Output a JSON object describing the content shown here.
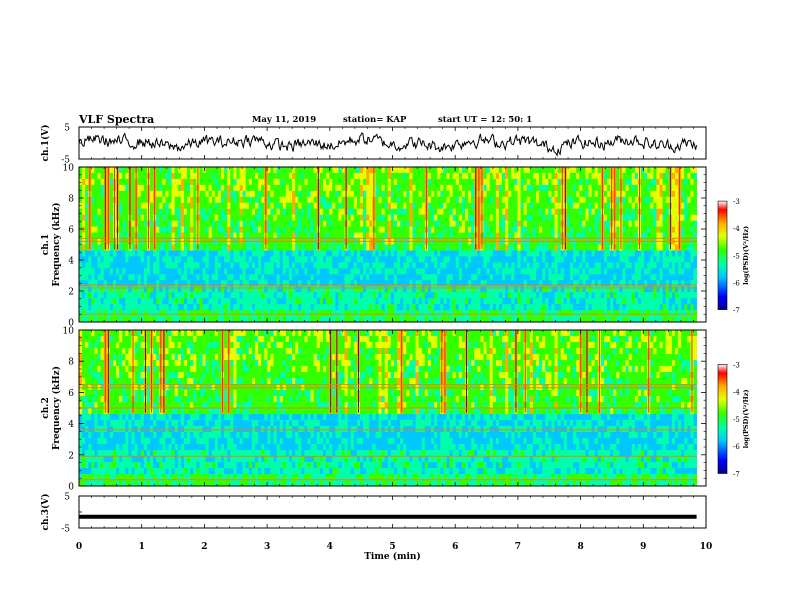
{
  "header": {
    "title": "VLF Spectra",
    "date": "May 11, 2019",
    "station": "station= KAP",
    "start": "start  UT =   12: 50: 1"
  },
  "chart_data": [
    {
      "type": "line",
      "panel": "ch1-waveform",
      "ylabel": "ch.1(V)",
      "ylim": [
        -5,
        5
      ],
      "yticks": [
        "5",
        "-5"
      ],
      "xlim": [
        0,
        10
      ],
      "series": [
        {
          "values_summary": "noisy waveform fluctuating roughly between -3 and 3 V across 0–9.8 min",
          "color": "#000000"
        }
      ]
    },
    {
      "type": "heatmap",
      "panel": "ch1-spectrogram",
      "ylabel": "ch.1\nFrequency (kHz)",
      "ylabel_lines": [
        "ch.1",
        "Frequency (kHz)"
      ],
      "ylim": [
        0,
        10
      ],
      "yticks": [
        "0",
        "2",
        "4",
        "6",
        "8",
        "10"
      ],
      "xlim": [
        0,
        9.85
      ],
      "colorbar": {
        "label": "log(PSD)(V²/Hz)",
        "range": [
          -7,
          -3
        ],
        "ticks": [
          "-3",
          "-4",
          "-5",
          "-6",
          "-7"
        ]
      },
      "horizontal_lines_khz": [
        0.5,
        2.2,
        2.4,
        5.2,
        5.4
      ],
      "description_bands": "low-frequency blue/cyan band 2.5–4.5 kHz, green/yellow elsewhere, red vertical sferics throughout"
    },
    {
      "type": "heatmap",
      "panel": "ch2-spectrogram",
      "ylabel": "ch.2\nFrequency (kHz)",
      "ylabel_lines": [
        "ch.2",
        "Frequency (kHz)"
      ],
      "ylim": [
        0,
        10
      ],
      "yticks": [
        "0",
        "2",
        "4",
        "6",
        "8",
        "10"
      ],
      "xlim": [
        0,
        9.85
      ],
      "colorbar": {
        "label": "log(PSD)(V²/Hz)",
        "range": [
          -7,
          -3
        ],
        "ticks": [
          "-3",
          "-4",
          "-5",
          "-6",
          "-7"
        ]
      },
      "horizontal_lines_khz": [
        0.4,
        1.9,
        3.6,
        5.0,
        6.3,
        6.5
      ]
    },
    {
      "type": "line",
      "panel": "ch3-waveform",
      "ylabel": "ch.3(V)",
      "ylim": [
        -5,
        5
      ],
      "yticks": [
        "5",
        "-5"
      ],
      "xlim": [
        0,
        10
      ],
      "series": [
        {
          "values_summary": "constant at about -1.5 V",
          "constant": -1.5,
          "color": "#000000"
        }
      ]
    }
  ],
  "xaxis": {
    "label": "Time (min)",
    "ticks": [
      "0",
      "1",
      "2",
      "3",
      "4",
      "5",
      "6",
      "7",
      "8",
      "9",
      "10"
    ],
    "range": [
      0,
      10
    ]
  },
  "colorbar_label": "log(PSD)(V²/Hz)",
  "colors": {
    "background": "#ffffff",
    "axes": "#000000",
    "cmap": [
      "#00008c",
      "#0000ff",
      "#00c8ff",
      "#00ffaa",
      "#32ff00",
      "#e6ff00",
      "#ffaa00",
      "#ff0000",
      "#ffffff"
    ]
  }
}
